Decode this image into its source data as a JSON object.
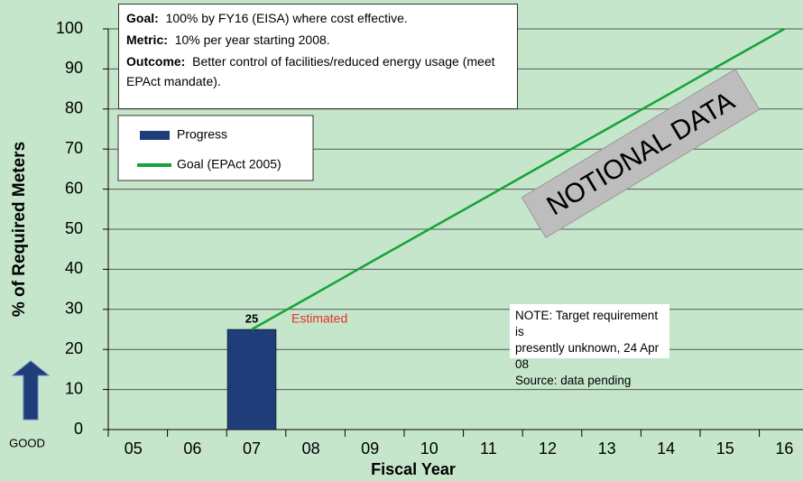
{
  "chart_data": {
    "type": "bar",
    "y_label": "% of Required Meters",
    "x_label": "Fiscal Year",
    "categories": [
      "05",
      "06",
      "07",
      "08",
      "09",
      "10",
      "11",
      "12",
      "13",
      "14",
      "15",
      "16"
    ],
    "series": [
      {
        "name": "Progress",
        "type": "bar",
        "color": "#1f3d78",
        "values": [
          null,
          null,
          25,
          null,
          null,
          null,
          null,
          null,
          null,
          null,
          null,
          null
        ]
      },
      {
        "name": "Goal (EPAct 2005)",
        "type": "line",
        "color": "#17a33a",
        "values": [
          null,
          null,
          25,
          33.3,
          41.7,
          50,
          58.3,
          66.7,
          75,
          83.3,
          91.7,
          100
        ]
      }
    ],
    "ylim": [
      0,
      100
    ],
    "yticks": [
      0,
      10,
      20,
      30,
      40,
      50,
      60,
      70,
      80,
      90,
      100
    ],
    "grid": true,
    "legend": "upper left",
    "info_box": [
      {
        "label": "Goal:",
        "text": "100% by FY16 (EISA) where cost effective."
      },
      {
        "label": "Metric:",
        "text": "10% per year starting 2008."
      },
      {
        "label": "Outcome:",
        "text": "Better control of facilities/reduced energy usage (meet EPAct mandate)."
      }
    ],
    "estimated_label": "Estimated",
    "note": [
      "NOTE:  Target requirement is",
      "presently unknown, 24 Apr 08",
      "Source: data pending"
    ],
    "stamp": "NOTIONAL DATA",
    "good_label": "GOOD"
  }
}
